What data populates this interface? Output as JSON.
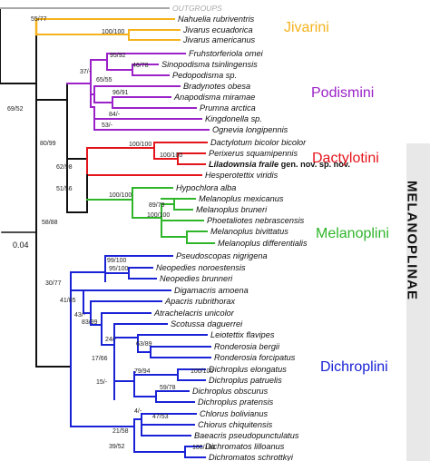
{
  "figure": {
    "outgroup_label": "OUTGROUPS",
    "scale_label": "0.04",
    "subfamily_label": "MELANOPLINAE"
  },
  "colors": {
    "jivarini": "#f5b21b",
    "podismini": "#9b22c8",
    "dactylotini": "#e4141b",
    "melanoplini": "#2fb52a",
    "dichroplini": "#1a22d6",
    "backbone": "#111111",
    "outgroup": "#a8a8a8",
    "band": "#e8e8e8"
  },
  "tribes": {
    "jivarini": "Jivarini",
    "podismini": "Podismini",
    "dactylotini": "Dactylotini",
    "melanoplini": "Melanoplini",
    "dichroplini": "Dichroplini"
  },
  "taxa": [
    {
      "name": "Nahuelia rubriventris",
      "suffix": "",
      "bold": false
    },
    {
      "name": "Jivarus ecuadorica",
      "suffix": "",
      "bold": false
    },
    {
      "name": "Jivarus americanus",
      "suffix": "",
      "bold": false
    },
    {
      "name": "Fruhstorferiola omei",
      "suffix": "",
      "bold": false
    },
    {
      "name": "Sinopodisma tsinlingensis",
      "suffix": "",
      "bold": false
    },
    {
      "name": "Pedopodisma sp.",
      "suffix": "",
      "bold": false
    },
    {
      "name": "Bradynotes obesa",
      "suffix": "",
      "bold": false
    },
    {
      "name": "Anapodisma miramae",
      "suffix": "",
      "bold": false
    },
    {
      "name": "Prumna arctica",
      "suffix": "",
      "bold": false
    },
    {
      "name": "Kingdonella sp.",
      "suffix": "",
      "bold": false
    },
    {
      "name": "Ognevia longipennis",
      "suffix": "",
      "bold": false
    },
    {
      "name": "Dactylotum bicolor bicolor",
      "suffix": "",
      "bold": false
    },
    {
      "name": "Perixerus squamipennis",
      "suffix": "",
      "bold": false
    },
    {
      "name": "Liladownsia fraile",
      "suffix": " gen. nov. sp. nov.",
      "bold": true
    },
    {
      "name": "Hesperotettix viridis",
      "suffix": "",
      "bold": false
    },
    {
      "name": "Hypochlora alba",
      "suffix": "",
      "bold": false
    },
    {
      "name": "Melanoplus mexicanus",
      "suffix": "",
      "bold": false
    },
    {
      "name": "Melanoplus bruneri",
      "suffix": "",
      "bold": false
    },
    {
      "name": "Phoetaliotes nebrascensis",
      "suffix": "",
      "bold": false
    },
    {
      "name": "Melanoplus bivittatus",
      "suffix": "",
      "bold": false
    },
    {
      "name": "Melanoplus differentialis",
      "suffix": "",
      "bold": false
    },
    {
      "name": "Pseudoscopas nigrigena",
      "suffix": "",
      "bold": false
    },
    {
      "name": "Neopedies noroestensis",
      "suffix": "",
      "bold": false
    },
    {
      "name": "Neopedies brunneri",
      "suffix": "",
      "bold": false
    },
    {
      "name": "Digamacris amoena",
      "suffix": "",
      "bold": false
    },
    {
      "name": "Apacris rubrithorax",
      "suffix": "",
      "bold": false
    },
    {
      "name": "Atrachelacris unicolor",
      "suffix": "",
      "bold": false
    },
    {
      "name": "Scotussa daguerrei",
      "suffix": "",
      "bold": false
    },
    {
      "name": "Leiotettix flavipes",
      "suffix": "",
      "bold": false
    },
    {
      "name": "Ronderosia bergii",
      "suffix": "",
      "bold": false
    },
    {
      "name": "Ronderosia forcipatus",
      "suffix": "",
      "bold": false
    },
    {
      "name": "Dichroplus elongatus",
      "suffix": "",
      "bold": false
    },
    {
      "name": "Dichroplus patruelis",
      "suffix": "",
      "bold": false
    },
    {
      "name": "Dichroplus obscurus",
      "suffix": "",
      "bold": false
    },
    {
      "name": "Dichroplus pratensis",
      "suffix": "",
      "bold": false
    },
    {
      "name": "Chlorus bolivianus",
      "suffix": "",
      "bold": false
    },
    {
      "name": "Chiorus chiquitensis",
      "suffix": "",
      "bold": false
    },
    {
      "name": "Baeacris pseudopunctulatus",
      "suffix": "",
      "bold": false
    },
    {
      "name": "Dichromatos lilloanus",
      "suffix": "",
      "bold": false
    },
    {
      "name": "Dichromatos schrottkyi",
      "suffix": "",
      "bold": false
    }
  ],
  "supports": [
    "55/77",
    "100/100",
    "95/92",
    "46/78",
    "37/-",
    "65/55",
    "96/91",
    "84/-",
    "53/-",
    "69/52",
    "80/99",
    "100/100",
    "100/100",
    "62/98",
    "51/56",
    "100/100",
    "89/79",
    "100/100",
    "58/88",
    "99/100",
    "95/100",
    "30/77",
    "41/85",
    "43/-",
    "83/99",
    "24/-",
    "63/89",
    "17/66",
    "79/94",
    "100/100",
    "15/-",
    "59/78",
    "47/53",
    "4/-",
    "21/58",
    "100/100",
    "39/52"
  ]
}
